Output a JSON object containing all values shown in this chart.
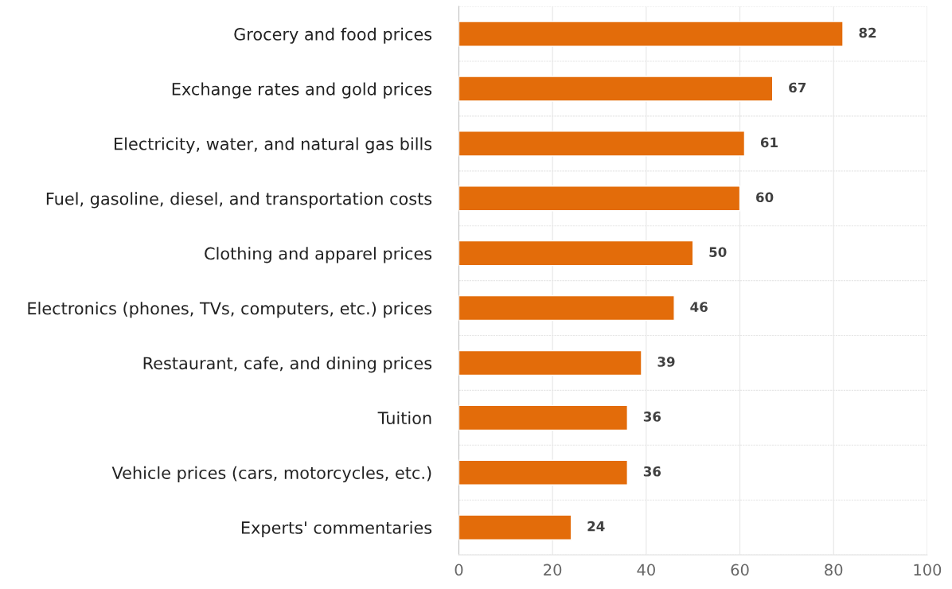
{
  "chart_data": {
    "type": "bar",
    "orientation": "horizontal",
    "categories": [
      "Grocery and food prices",
      "Exchange rates and gold prices",
      "Electricity, water, and natural gas bills",
      "Fuel, gasoline, diesel, and transportation costs",
      "Clothing and apparel prices",
      "Electronics (phones, TVs, computers, etc.) prices",
      "Restaurant, cafe, and dining prices",
      "Tuition",
      "Vehicle prices (cars, motorcycles, etc.)",
      "Experts' commentaries"
    ],
    "values": [
      82,
      67,
      61,
      60,
      50,
      46,
      39,
      36,
      36,
      24
    ],
    "color": "#e36c0a",
    "xlim": [
      0,
      100
    ],
    "xticks": [
      0,
      20,
      40,
      60,
      80,
      100
    ],
    "grid": true,
    "data_labels": true
  }
}
